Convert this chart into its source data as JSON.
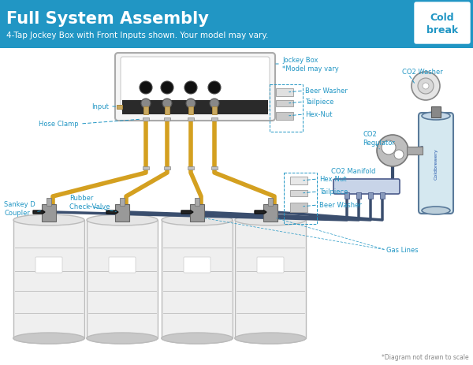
{
  "title": "Full System Assembly",
  "subtitle": "4-Tap Jockey Box with Front Inputs shown. Your model may vary.",
  "bg_header": "#2196C4",
  "bg_main": "#FFFFFF",
  "footer_note": "*Diagram not drawn to scale",
  "labels": {
    "jockey_box": "- - Jockey Box\n      *Model may vary",
    "beer_washer_top": "- - Beer Washer",
    "tailpiece_top": "- - Tailpiece",
    "hex_nut_top": "- - Hex-Nut",
    "input": "Input - -",
    "hose_clamp": "Hose Clamp",
    "sankey_d": "Sankey D\nCoupler",
    "rubber_check": "Rubber\nCheck Valve",
    "co2_manifold": "CO2 Manifold",
    "hex_nut_bot": "- Hex-Nut",
    "tailpiece_bot": "- Tailpiece",
    "beer_washer_bot": "- Beer Washer",
    "gas_lines": "Gas Lines",
    "co2_regulator": "CO2\nRegulator",
    "co2_washer": "CO2 Washer",
    "co2_tank_label": "Coldbrewery"
  },
  "colors": {
    "beer_tube": "#D4A020",
    "gas_tube": "#3A4E6E",
    "label_line": "#2196C4",
    "keg_body": "#EFEFEF",
    "keg_stroke": "#BBBBBB",
    "jockey_box_fill": "#F5F5F5",
    "jockey_box_stroke": "#AAAAAA",
    "tank_fill": "#D5E8F0",
    "tank_stroke": "#5A7A9A",
    "header_text": "#FFFFFF",
    "dashed_box": "#2196C4"
  }
}
